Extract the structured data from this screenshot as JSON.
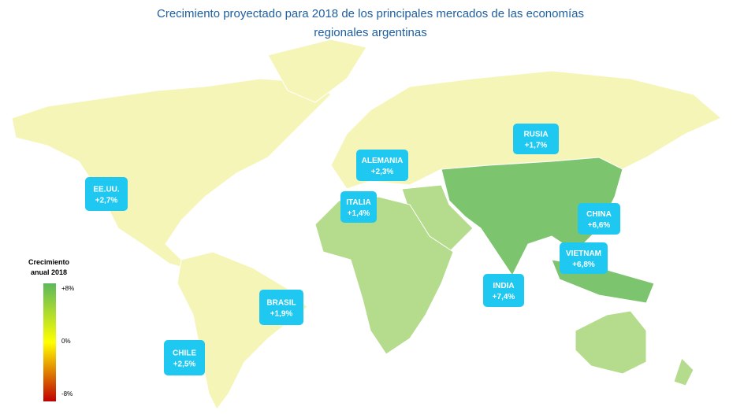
{
  "title_lines": [
    "Crecimiento proyectado para 2018 de los principales mercados de las economías",
    "regionales argentinas"
  ],
  "labels": [
    {
      "name": "EE.UU.",
      "value": "+2,7%"
    },
    {
      "name": "ALEMANIA",
      "value": "+2,3%"
    },
    {
      "name": "ITALIA",
      "value": "+1,4%"
    },
    {
      "name": "RUSIA",
      "value": "+1,7%"
    },
    {
      "name": "CHINA",
      "value": "+6,6%"
    },
    {
      "name": "VIETNAM",
      "value": "+6,8%"
    },
    {
      "name": "INDIA",
      "value": "+7,4%"
    },
    {
      "name": "BRASIL",
      "value": "+1,9%"
    },
    {
      "name": "CHILE",
      "value": "+2,5%"
    }
  ],
  "legend": {
    "title_lines": [
      "Crecimiento",
      "anual 2018"
    ],
    "ticks": [
      "+8%",
      "0%",
      "-8%"
    ]
  }
}
